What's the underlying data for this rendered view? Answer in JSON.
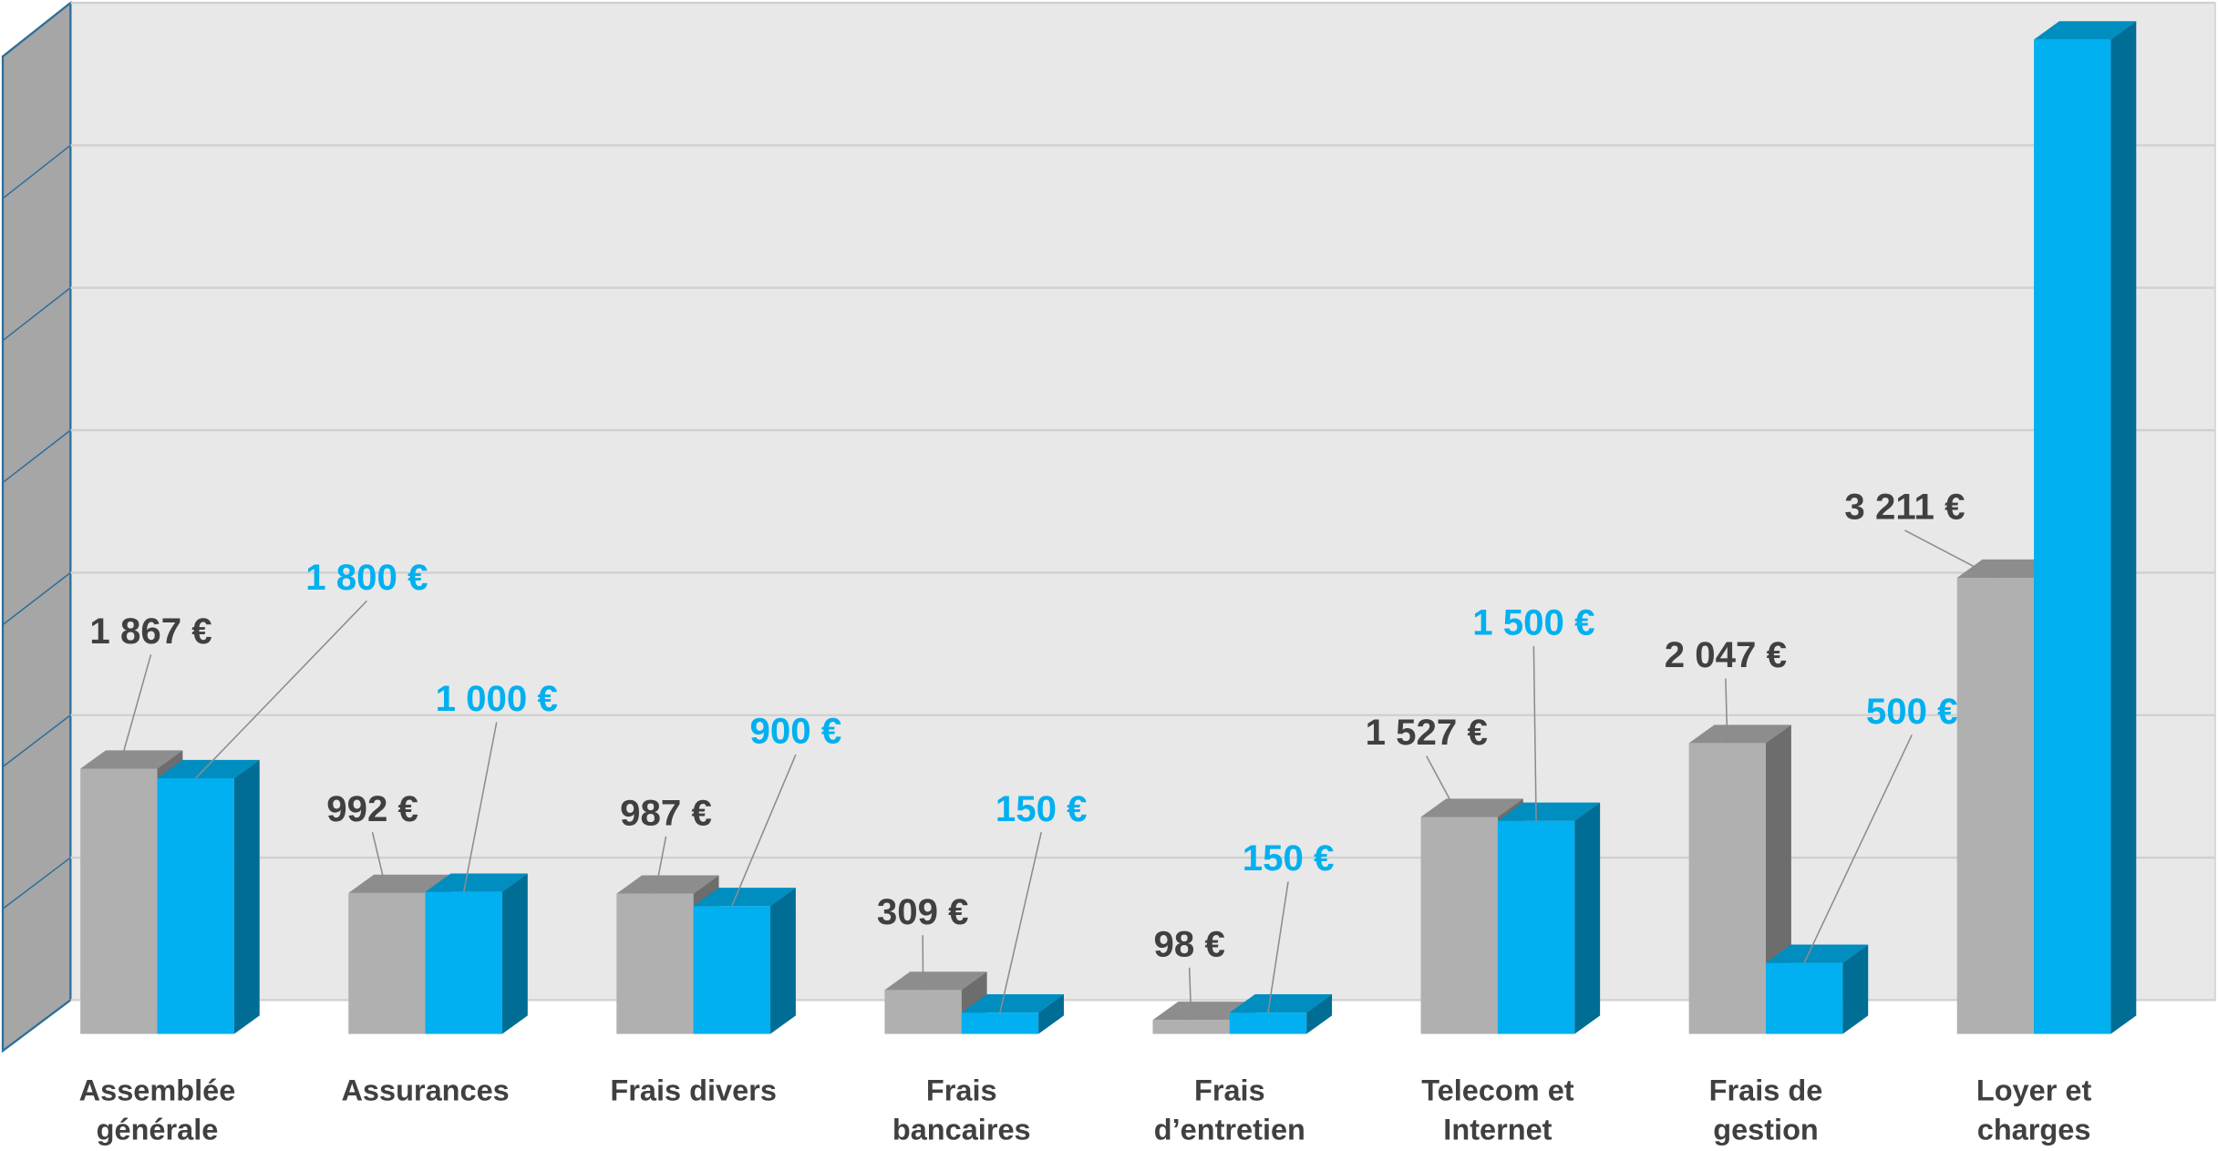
{
  "chart_data": {
    "type": "bar3d",
    "categories": [
      [
        "Assemblée",
        "générale"
      ],
      [
        "Assurances"
      ],
      [
        "Frais divers"
      ],
      [
        "Frais",
        "bancaires"
      ],
      [
        "Frais",
        "d’entretien"
      ],
      [
        "Telecom et",
        "Internet"
      ],
      [
        "Frais de",
        "gestion"
      ],
      [
        "Loyer et",
        "charges"
      ]
    ],
    "series": [
      {
        "color": "#b0b0b0",
        "values": [
          1867,
          992,
          987,
          309,
          98,
          1527,
          2047,
          3211
        ],
        "value_labels": [
          "1 867 €",
          "992 €",
          "987 €",
          "309 €",
          "98 €",
          "1 527 €",
          "2 047 €",
          "3 211 €"
        ]
      },
      {
        "color": "#00b0f0",
        "values": [
          1800,
          1000,
          900,
          150,
          150,
          1500,
          500,
          7000
        ],
        "value_labels": [
          "1 800 €",
          "1 000 €",
          "900 €",
          "150 €",
          "150 €",
          "1 500 €",
          "500 €",
          null
        ]
      }
    ],
    "ylim": [
      0,
      7000
    ],
    "yticks": [
      0,
      1000,
      2000,
      3000,
      4000,
      5000,
      6000,
      7000
    ],
    "grid": true
  }
}
